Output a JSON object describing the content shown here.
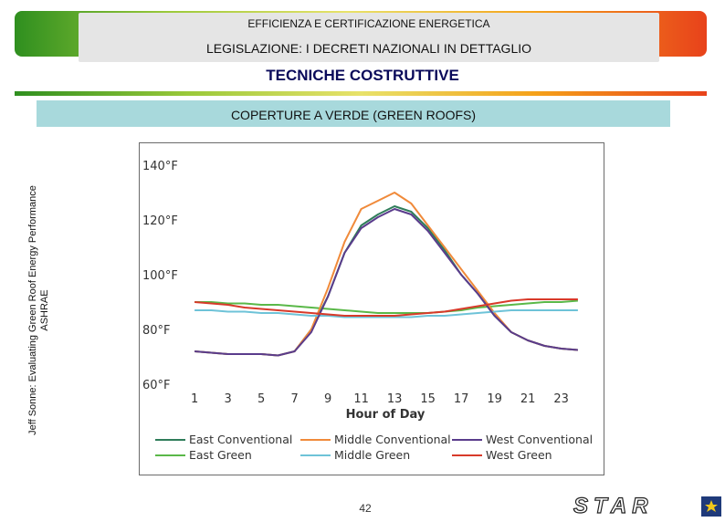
{
  "header": {
    "line1": "EFFICIENZA E CERTIFICAZIONE ENERGETICA",
    "line2": "LEGISLAZIONE: I DECRETI NAZIONALI  IN DETTAGLIO",
    "line3": "TECNICHE COSTRUTTIVE"
  },
  "section": {
    "title": "COPERTURE A VERDE (GREEN ROOFS)"
  },
  "source": {
    "line1": "Jeff Sonne: Evaluating Green Roof Energy Performance",
    "line2": "ASHRAE"
  },
  "footer": {
    "page_number": "42",
    "logo_text": "STAR"
  },
  "colors": {
    "banner_start": "#2f8f1f",
    "banner_end": "#e8421b",
    "accent_bar": "#a8d9dc"
  },
  "chart_data": {
    "type": "line",
    "xlabel": "Hour of Day",
    "ylabel": "",
    "x": [
      1,
      2,
      3,
      4,
      5,
      6,
      7,
      8,
      9,
      10,
      11,
      12,
      13,
      14,
      15,
      16,
      17,
      18,
      19,
      20,
      21,
      22,
      23,
      24
    ],
    "xticks": [
      "1",
      "3",
      "5",
      "7",
      "9",
      "11",
      "13",
      "15",
      "17",
      "19",
      "21",
      "23"
    ],
    "xtick_values": [
      1,
      3,
      5,
      7,
      9,
      11,
      13,
      15,
      17,
      19,
      21,
      23
    ],
    "xlim": [
      0.5,
      24.5
    ],
    "yticks": [
      "140°F",
      "120°F",
      "100°F",
      "80°F",
      "60°F"
    ],
    "ytick_values": [
      140,
      120,
      100,
      80,
      60
    ],
    "ylim": [
      60,
      140
    ],
    "grid": false,
    "legend": "bottom",
    "series": [
      {
        "name": "East Conventional",
        "color": "#2f7d5a",
        "values": [
          72,
          71.5,
          71,
          71,
          71,
          70.5,
          72,
          80,
          92,
          108,
          118,
          122,
          125,
          123,
          117,
          109,
          100,
          93,
          85,
          79,
          76,
          74,
          73,
          72.5
        ]
      },
      {
        "name": "East Green",
        "color": "#5ab848",
        "values": [
          90,
          90,
          89.5,
          89.5,
          89,
          89,
          88.5,
          88,
          87.5,
          87,
          86.5,
          86,
          86,
          86,
          86,
          86.5,
          87,
          88,
          88.5,
          89,
          89.5,
          90,
          90,
          90.5
        ]
      },
      {
        "name": "Middle Conventional",
        "color": "#f08a3a",
        "values": [
          72,
          71.5,
          71,
          71,
          71,
          70.5,
          72,
          80,
          95,
          112,
          124,
          127,
          130,
          126,
          118,
          110,
          102,
          94,
          86,
          79,
          76,
          74,
          73,
          72.5
        ]
      },
      {
        "name": "Middle Green",
        "color": "#6ec3d8",
        "values": [
          87,
          87,
          86.5,
          86.5,
          86,
          86,
          85.5,
          85,
          85,
          84.5,
          84.5,
          84.5,
          84.5,
          84.5,
          85,
          85,
          85.5,
          86,
          86.5,
          87,
          87,
          87,
          87,
          87
        ]
      },
      {
        "name": "West Conventional",
        "color": "#5a3c8c",
        "values": [
          72,
          71.5,
          71,
          71,
          71,
          70.5,
          72,
          79,
          92,
          108,
          117,
          121,
          124,
          122,
          116,
          108,
          100,
          93,
          85,
          79,
          76,
          74,
          73,
          72.5
        ]
      },
      {
        "name": "West Green",
        "color": "#d83a2a",
        "values": [
          90,
          89.5,
          89,
          88,
          87.5,
          87,
          86.5,
          86,
          85.5,
          85,
          85,
          85,
          85,
          85.5,
          86,
          86.5,
          87.5,
          88.5,
          89.5,
          90.5,
          91,
          91,
          91,
          91
        ]
      }
    ]
  }
}
